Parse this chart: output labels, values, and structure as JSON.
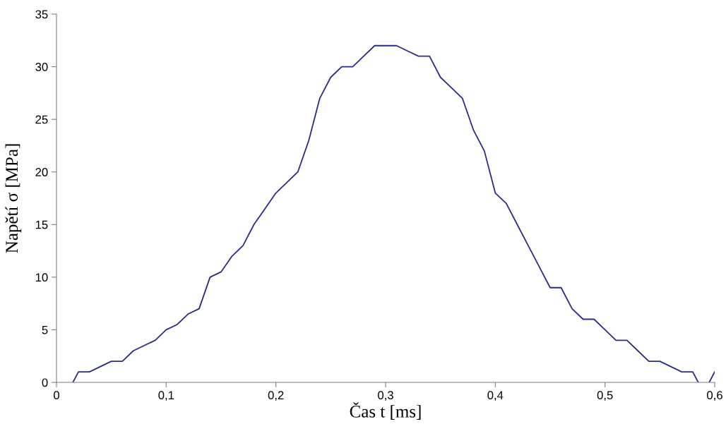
{
  "chart_data": {
    "type": "line",
    "xlabel": "Čas t [ms]",
    "ylabel": "Napětí σ [MPa]",
    "x": [
      0.015,
      0.02,
      0.03,
      0.04,
      0.05,
      0.06,
      0.07,
      0.08,
      0.09,
      0.1,
      0.11,
      0.12,
      0.13,
      0.14,
      0.15,
      0.16,
      0.17,
      0.18,
      0.19,
      0.2,
      0.21,
      0.22,
      0.23,
      0.24,
      0.25,
      0.26,
      0.27,
      0.28,
      0.29,
      0.3,
      0.31,
      0.32,
      0.33,
      0.34,
      0.35,
      0.36,
      0.37,
      0.38,
      0.39,
      0.4,
      0.41,
      0.42,
      0.43,
      0.44,
      0.45,
      0.46,
      0.47,
      0.48,
      0.49,
      0.5,
      0.51,
      0.52,
      0.53,
      0.54,
      0.55,
      0.56,
      0.57,
      0.58,
      0.585,
      null,
      0.595,
      0.6
    ],
    "series": [
      {
        "color": "#2b2b8c",
        "values": [
          0,
          1,
          1,
          1.5,
          2,
          2,
          3,
          3.5,
          4,
          5,
          5.5,
          6.5,
          7,
          10,
          10.5,
          12,
          13,
          15,
          16.5,
          18,
          19,
          20,
          23,
          27,
          29,
          30,
          30,
          31,
          32,
          32,
          32,
          31.5,
          31,
          31,
          29,
          28,
          27,
          24,
          22,
          18,
          17,
          15,
          13,
          11,
          9,
          9,
          7,
          6,
          6,
          5,
          4,
          4,
          3,
          2,
          2,
          1.5,
          1,
          1,
          0,
          null,
          0,
          1
        ]
      }
    ],
    "xlim": [
      0,
      0.6
    ],
    "xticks": [
      {
        "value": 0,
        "label": "0"
      },
      {
        "value": 0.1,
        "label": "0,1"
      },
      {
        "value": 0.2,
        "label": "0,2"
      },
      {
        "value": 0.3,
        "label": "0,3"
      },
      {
        "value": 0.4,
        "label": "0,4"
      },
      {
        "value": 0.5,
        "label": "0,5"
      },
      {
        "value": 0.6,
        "label": "0,6"
      }
    ],
    "ylim": [
      0,
      35
    ],
    "yticks": [
      0,
      5,
      10,
      15,
      20,
      25,
      30,
      35
    ],
    "grid": false,
    "legend": false,
    "marker": "none",
    "line_style": "solid"
  }
}
